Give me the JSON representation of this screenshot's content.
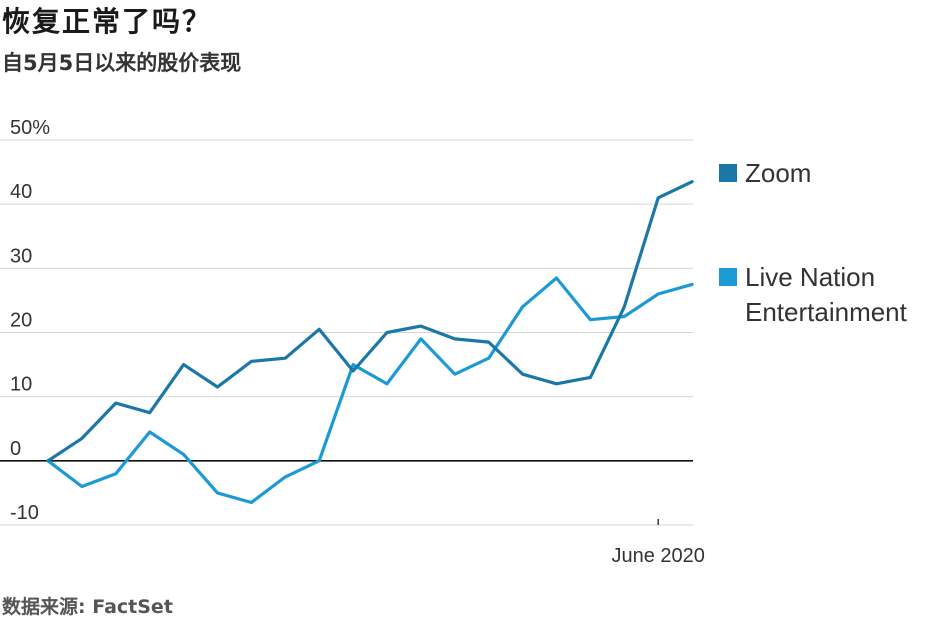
{
  "title": "恢复正常了吗？",
  "subtitle": "自5月5日以来的股价表现",
  "source": "数据来源: FactSet",
  "chart_data": {
    "type": "line",
    "title": "恢复正常了吗？",
    "subtitle": "自5月5日以来的股价表现",
    "xlabel": "",
    "ylabel": "",
    "ylim": [
      -10,
      50
    ],
    "y_ticks": [
      {
        "value": 50,
        "label": "50%"
      },
      {
        "value": 40,
        "label": "40"
      },
      {
        "value": 30,
        "label": "30"
      },
      {
        "value": 20,
        "label": "20"
      },
      {
        "value": 10,
        "label": "10"
      },
      {
        "value": 0,
        "label": "0"
      },
      {
        "value": -10,
        "label": "-10"
      }
    ],
    "x_tick": {
      "index": 18,
      "label": "June 2020"
    },
    "grid": true,
    "legend_position": "right",
    "series": [
      {
        "name": "Zoom",
        "color": "#1b77a8",
        "values": [
          0,
          3.5,
          9,
          7.5,
          15,
          11.5,
          15.5,
          16,
          20.5,
          14,
          20,
          21,
          19,
          18.5,
          13.5,
          12,
          13,
          24,
          41,
          43.5
        ]
      },
      {
        "name": "Live Nation Entertainment",
        "legend_lines": [
          "Live Nation",
          "Entertainment"
        ],
        "color": "#1c9ad6",
        "values": [
          0,
          -4,
          -2,
          4.5,
          1,
          -5,
          -6.5,
          -2.5,
          0,
          15,
          12,
          19,
          13.5,
          16,
          24,
          28.5,
          22,
          22.5,
          26,
          27.5
        ]
      }
    ]
  }
}
